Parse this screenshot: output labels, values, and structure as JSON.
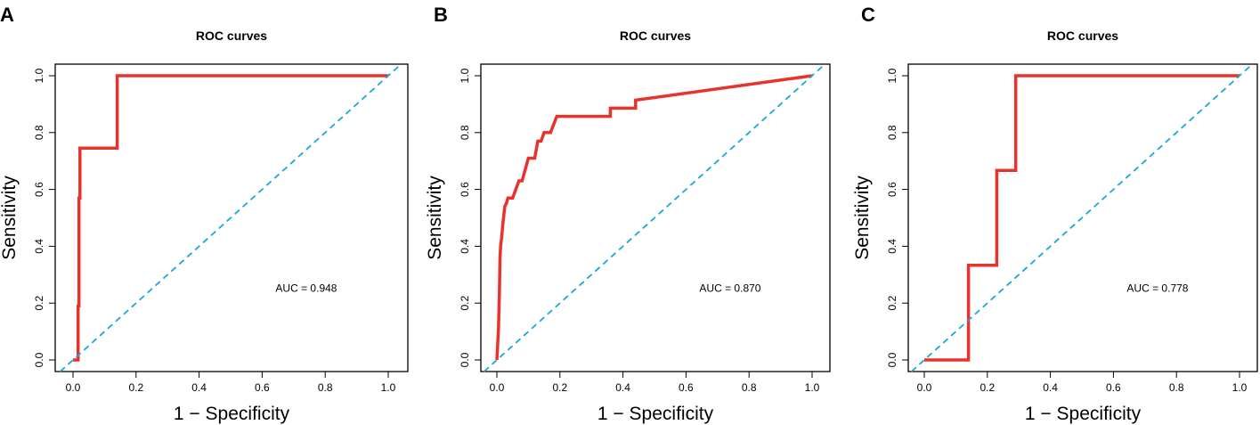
{
  "chart_data": [
    {
      "type": "line",
      "panel_label": "A",
      "title": "ROC curves",
      "xlabel": "1 − Specificity",
      "ylabel": "Sensitivity",
      "xlim": [
        0,
        1
      ],
      "ylim": [
        0,
        1
      ],
      "x_ticks": [
        "0.0",
        "0.2",
        "0.4",
        "0.6",
        "0.8",
        "1.0"
      ],
      "y_ticks": [
        "0.0",
        "0.2",
        "0.4",
        "0.6",
        "0.8",
        "1.0"
      ],
      "annotation": "AUC = 0.948",
      "series": [
        {
          "name": "ROC",
          "color": "#e8322c",
          "x": [
            0.0,
            0.016,
            0.016,
            0.019,
            0.019,
            0.022,
            0.022,
            0.14,
            0.14,
            1.0
          ],
          "y": [
            0.0,
            0.0,
            0.19,
            0.19,
            0.57,
            0.57,
            0.745,
            0.745,
            1.0,
            1.0
          ]
        },
        {
          "name": "reference",
          "color": "#1aa7d9",
          "dashed": true,
          "x": [
            0,
            1
          ],
          "y": [
            0,
            1
          ]
        }
      ]
    },
    {
      "type": "line",
      "panel_label": "B",
      "title": "ROC curves",
      "xlabel": "1 − Specificity",
      "ylabel": "Sensitivity",
      "xlim": [
        0,
        1
      ],
      "ylim": [
        0,
        1
      ],
      "x_ticks": [
        "0.0",
        "0.2",
        "0.4",
        "0.6",
        "0.8",
        "1.0"
      ],
      "y_ticks": [
        "0.0",
        "0.2",
        "0.4",
        "0.6",
        "0.8",
        "1.0"
      ],
      "annotation": "AUC = 0.870",
      "series": [
        {
          "name": "ROC",
          "color": "#e8322c",
          "x": [
            0.0,
            0.005,
            0.008,
            0.01,
            0.012,
            0.015,
            0.02,
            0.025,
            0.03,
            0.035,
            0.04,
            0.05,
            0.06,
            0.07,
            0.08,
            0.1,
            0.12,
            0.13,
            0.14,
            0.15,
            0.17,
            0.19,
            0.36,
            0.36,
            0.44,
            0.44,
            1.0
          ],
          "y": [
            0.0,
            0.11,
            0.23,
            0.36,
            0.4,
            0.43,
            0.49,
            0.54,
            0.55,
            0.57,
            0.57,
            0.57,
            0.6,
            0.63,
            0.63,
            0.71,
            0.71,
            0.77,
            0.77,
            0.8,
            0.8,
            0.857,
            0.857,
            0.886,
            0.886,
            0.914,
            1.0
          ]
        },
        {
          "name": "reference",
          "color": "#1aa7d9",
          "dashed": true,
          "x": [
            0,
            1
          ],
          "y": [
            0,
            1
          ]
        }
      ]
    },
    {
      "type": "line",
      "panel_label": "C",
      "title": "ROC curves",
      "xlabel": "1 − Specificity",
      "ylabel": "Sensitivity",
      "xlim": [
        0,
        1
      ],
      "ylim": [
        0,
        1
      ],
      "x_ticks": [
        "0.0",
        "0.2",
        "0.4",
        "0.6",
        "0.8",
        "1.0"
      ],
      "y_ticks": [
        "0.0",
        "0.2",
        "0.4",
        "0.6",
        "0.8",
        "1.0"
      ],
      "annotation": "AUC = 0.778",
      "series": [
        {
          "name": "ROC",
          "color": "#e8322c",
          "x": [
            0.0,
            0.14,
            0.14,
            0.23,
            0.23,
            0.29,
            0.29,
            1.0
          ],
          "y": [
            0.0,
            0.0,
            0.333,
            0.333,
            0.667,
            0.667,
            1.0,
            1.0
          ]
        },
        {
          "name": "reference",
          "color": "#1aa7d9",
          "dashed": true,
          "x": [
            0,
            1
          ],
          "y": [
            0,
            1
          ]
        }
      ]
    }
  ]
}
